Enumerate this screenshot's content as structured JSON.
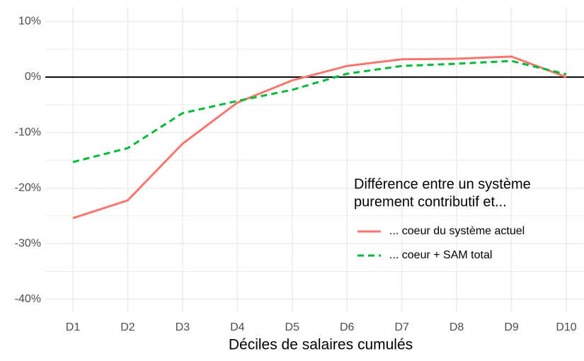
{
  "chart_data": {
    "type": "line",
    "x_label": "Déciles de salaires cumulés",
    "categories": [
      "D1",
      "D2",
      "D3",
      "D4",
      "D5",
      "D6",
      "D7",
      "D8",
      "D9",
      "D10"
    ],
    "series": [
      {
        "name": "... coeur du système actuel",
        "color": "#f8766d",
        "dash": "solid",
        "values": [
          -25.4,
          -22.2,
          -12.0,
          -4.6,
          -0.6,
          2.0,
          3.2,
          3.3,
          3.7,
          0.0
        ]
      },
      {
        "name": "... coeur + SAM total",
        "color": "#00ba38",
        "dash": "dashed",
        "values": [
          -15.3,
          -12.8,
          -6.5,
          -4.3,
          -2.3,
          0.6,
          2.0,
          2.4,
          2.9,
          0.5
        ]
      }
    ],
    "ylim": [
      -42.2,
      12.6
    ],
    "yticks": [
      {
        "value": 10,
        "label": "10%"
      },
      {
        "value": 0,
        "label": "0%"
      },
      {
        "value": -10,
        "label": "-10%"
      },
      {
        "value": -20,
        "label": "-20%"
      },
      {
        "value": -30,
        "label": "-30%"
      },
      {
        "value": -40,
        "label": "-40%"
      }
    ],
    "minor_yticks": [
      5,
      -5,
      -15,
      -25,
      -35
    ],
    "hline": 0,
    "grid": true,
    "legend_title": [
      "Différence entre un système",
      "purement contributif et..."
    ],
    "legend_position": "bottom-right"
  }
}
